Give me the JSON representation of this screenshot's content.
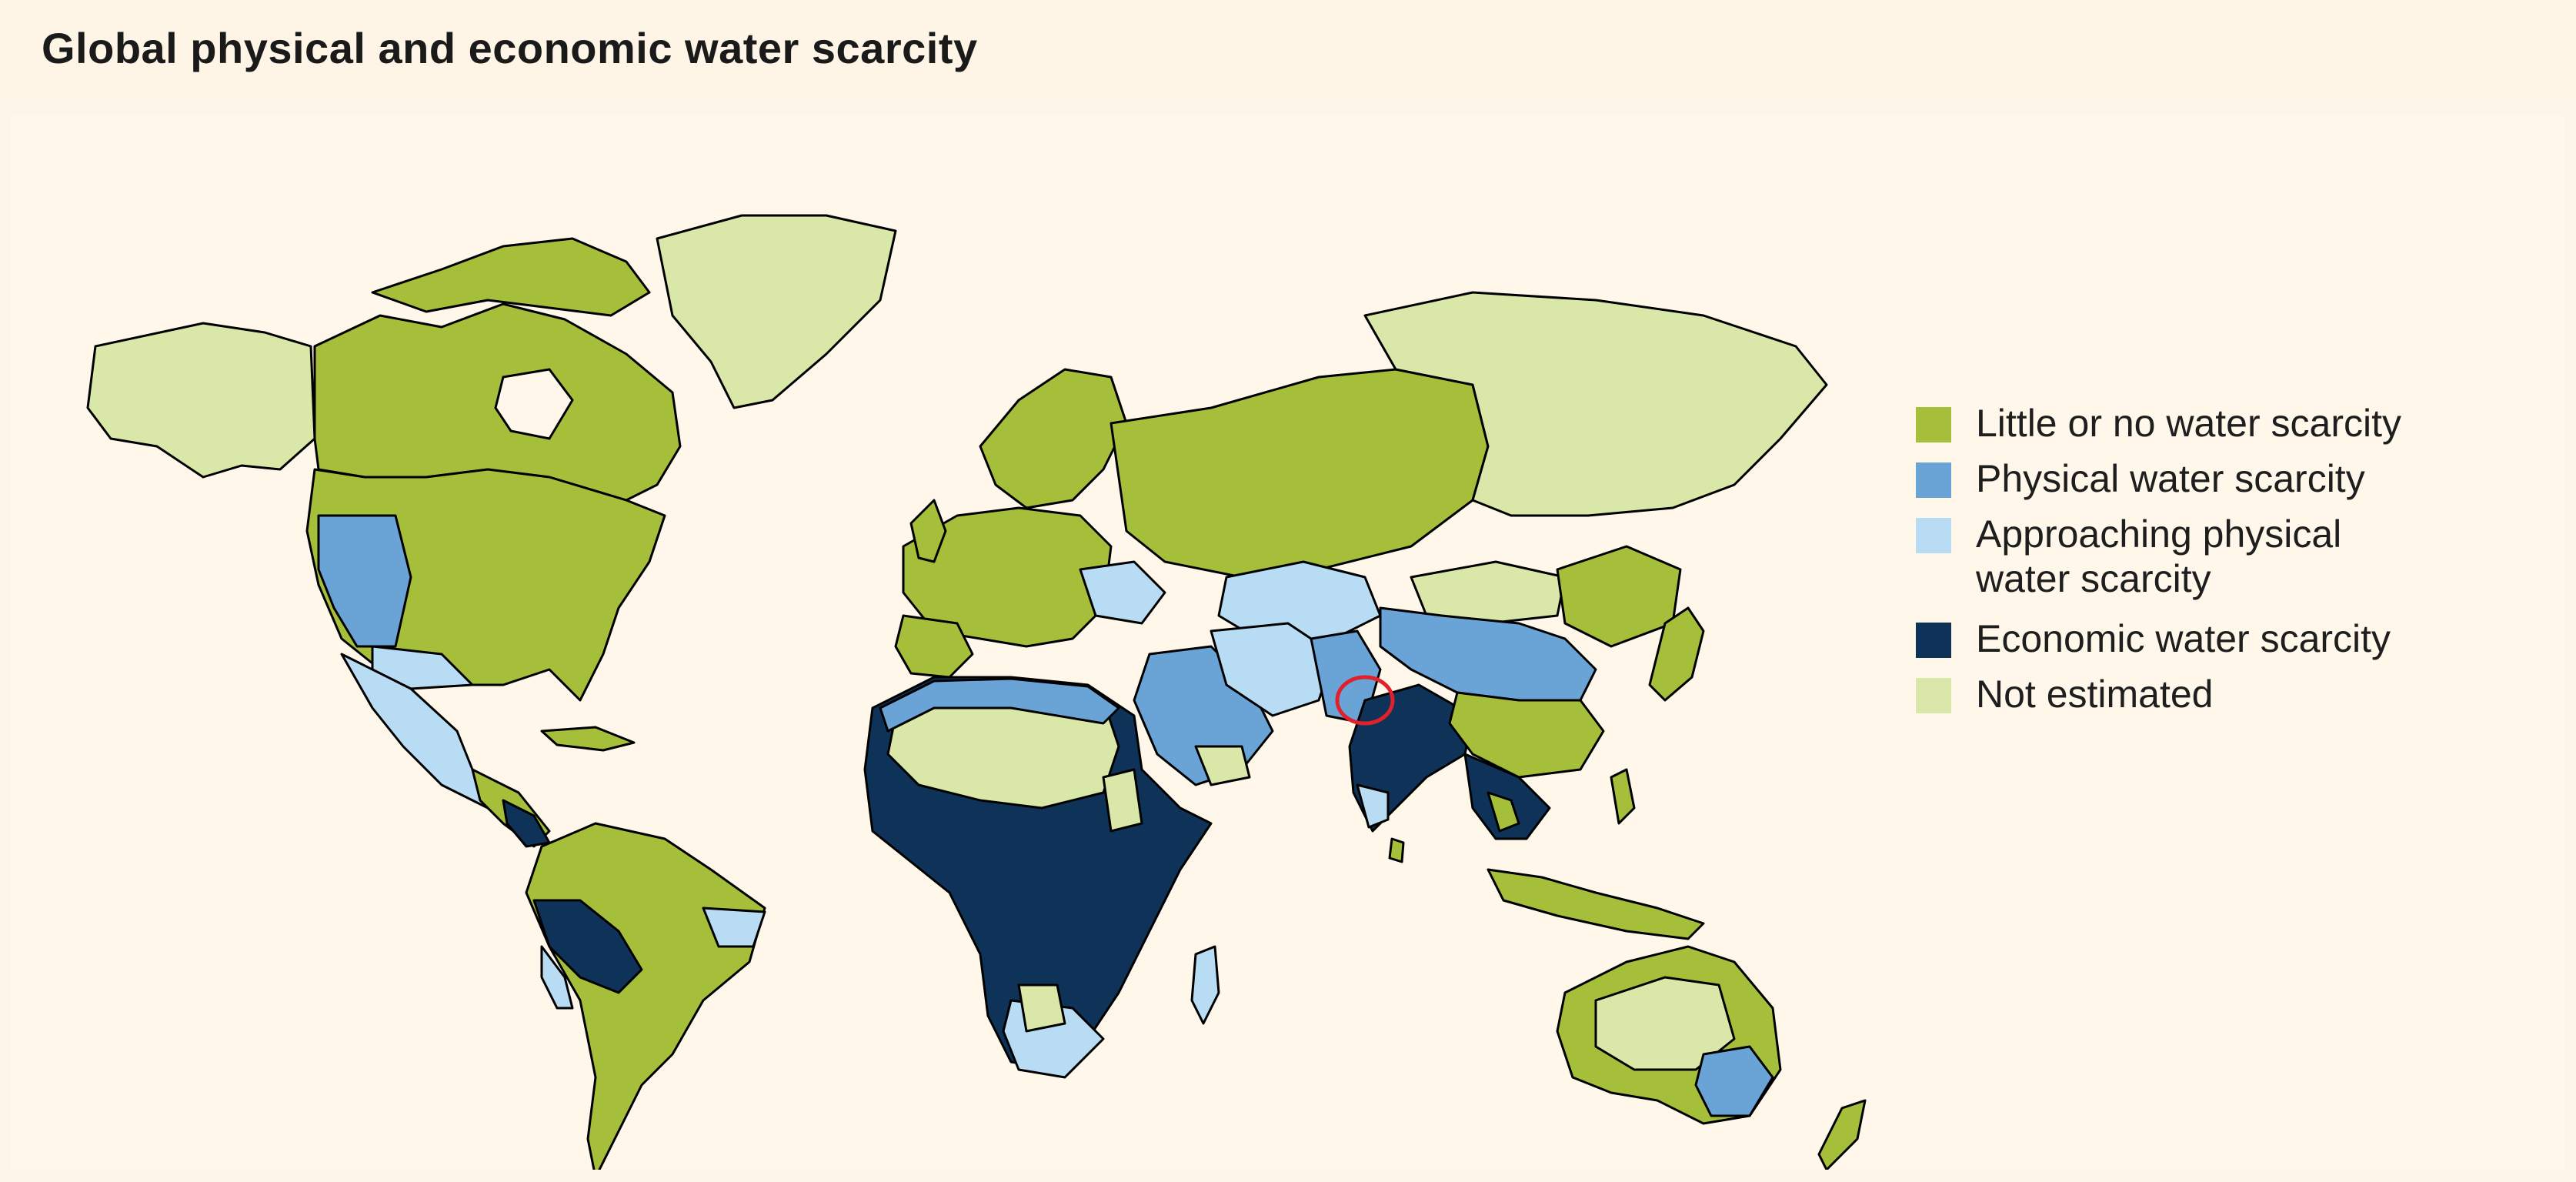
{
  "title": "Global physical and economic water scarcity",
  "colors": {
    "little": "#a6bf3a",
    "physical": "#6aa3d6",
    "approaching": "#b7dcf3",
    "economic": "#0f3358",
    "not_estimated": "#d9e8a8",
    "background": "#fdf6e8",
    "highlight_circle": "#e0202a"
  },
  "legend": {
    "items": [
      {
        "key": "little",
        "label": "Little or no water scarcity"
      },
      {
        "key": "physical",
        "label": "Physical water scarcity"
      },
      {
        "key": "approaching",
        "label": "Approaching physical water scarcity"
      },
      {
        "key": "economic",
        "label": "Economic water scarcity"
      },
      {
        "key": "not_estimated",
        "label": "Not estimated"
      }
    ]
  }
}
